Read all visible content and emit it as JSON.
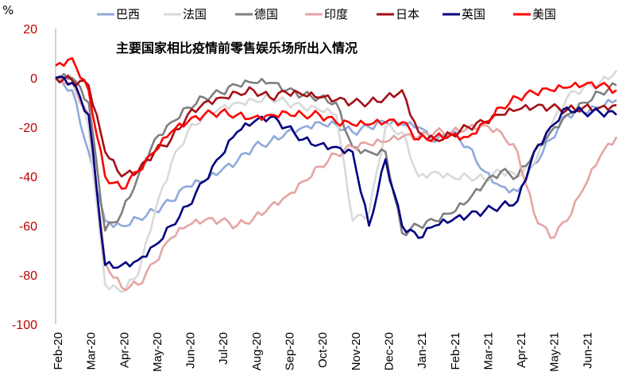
{
  "chart_data": {
    "type": "line",
    "title": "主要国家相比疫情前零售娱乐场所出入情况",
    "ylabel": "%",
    "xlabel": "",
    "ylim": [
      -100,
      20
    ],
    "yticks": [
      "20",
      "0",
      "-20",
      "-40",
      "-60",
      "-80",
      "-100"
    ],
    "ytick_values": [
      20,
      0,
      -20,
      -40,
      -60,
      -80,
      -100
    ],
    "xticks": [
      "Feb-20",
      "Mar-20",
      "Apr-20",
      "May-20",
      "Jun-20",
      "Jul-20",
      "Aug-20",
      "Sep-20",
      "Oct-20",
      "Nov-20",
      "Dec-20",
      "Jan-21",
      "Feb-21",
      "Mar-21",
      "Apr-21",
      "May-21",
      "Jun-21"
    ],
    "x": [
      "Feb-20",
      "Feb-20b",
      "Mar-20",
      "Mar-20b",
      "Apr-20",
      "Apr-20b",
      "May-20",
      "May-20b",
      "Jun-20",
      "Jun-20b",
      "Jul-20",
      "Jul-20b",
      "Aug-20",
      "Aug-20b",
      "Sep-20",
      "Sep-20b",
      "Oct-20",
      "Oct-20b",
      "Nov-20",
      "Nov-20b",
      "Dec-20",
      "Dec-20b",
      "Jan-21",
      "Jan-21b",
      "Feb-21",
      "Feb-21b",
      "Mar-21",
      "Mar-21b",
      "Apr-21",
      "Apr-21b",
      "May-21",
      "May-21b",
      "Jun-21",
      "Jun-21b",
      "Jul-21"
    ],
    "legend_position": "top",
    "grid": false,
    "series": [
      {
        "name": "巴西",
        "color": "#8eaadb",
        "values": [
          0,
          -5,
          -30,
          -58,
          -60,
          -57,
          -54,
          -50,
          -44,
          -42,
          -38,
          -34,
          -28,
          -26,
          -22,
          -20,
          -18,
          -19,
          -22,
          -20,
          -18,
          -19,
          -20,
          -26,
          -22,
          -28,
          -38,
          -44,
          -46,
          -35,
          -25,
          -15,
          -14,
          -12,
          -9
        ]
      },
      {
        "name": "法国",
        "color": "#d9d9d9",
        "values": [
          0,
          0,
          -20,
          -84,
          -87,
          -80,
          -55,
          -35,
          -22,
          -15,
          -12,
          -10,
          -9,
          -8,
          -10,
          -12,
          -13,
          -15,
          -58,
          -55,
          -20,
          -22,
          -40,
          -38,
          -40,
          -40,
          -41,
          -38,
          -40,
          -35,
          -20,
          -8,
          -4,
          -2,
          3
        ]
      },
      {
        "name": "德国",
        "color": "#7f7f7f",
        "values": [
          0,
          0,
          -10,
          -62,
          -55,
          -40,
          -25,
          -18,
          -12,
          -8,
          -6,
          -3,
          -2,
          -2,
          -5,
          -7,
          -8,
          -10,
          -28,
          -30,
          -30,
          -63,
          -60,
          -58,
          -55,
          -50,
          -43,
          -38,
          -40,
          -30,
          -22,
          -15,
          -10,
          -6,
          -3
        ]
      },
      {
        "name": "印度",
        "color": "#e6a4a4",
        "values": [
          0,
          -2,
          -15,
          -75,
          -85,
          -84,
          -75,
          -65,
          -60,
          -58,
          -58,
          -60,
          -57,
          -52,
          -48,
          -42,
          -36,
          -31,
          -28,
          -27,
          -26,
          -24,
          -24,
          -22,
          -22,
          -20,
          -19,
          -22,
          -30,
          -55,
          -65,
          -58,
          -45,
          -32,
          -24
        ]
      },
      {
        "name": "日本",
        "color": "#a50f15",
        "values": [
          0,
          -1,
          -3,
          -30,
          -40,
          -38,
          -30,
          -25,
          -15,
          -10,
          -8,
          -6,
          -5,
          -8,
          -6,
          -7,
          -8,
          -9,
          -10,
          -10,
          -8,
          -5,
          -22,
          -25,
          -23,
          -20,
          -18,
          -15,
          -13,
          -12,
          -12,
          -13,
          -12,
          -12,
          -11
        ]
      },
      {
        "name": "英国",
        "color": "#000080",
        "values": [
          0,
          -2,
          -15,
          -76,
          -76,
          -74,
          -68,
          -60,
          -52,
          -42,
          -32,
          -22,
          -18,
          -16,
          -20,
          -25,
          -27,
          -28,
          -30,
          -60,
          -33,
          -60,
          -65,
          -60,
          -58,
          -56,
          -54,
          -52,
          -50,
          -30,
          -20,
          -12,
          -14,
          -14,
          -15
        ]
      },
      {
        "name": "美国",
        "color": "#ff0000",
        "values": [
          5,
          8,
          -5,
          -40,
          -45,
          -38,
          -30,
          -22,
          -18,
          -15,
          -14,
          -15,
          -16,
          -15,
          -14,
          -15,
          -15,
          -18,
          -19,
          -19,
          -18,
          -18,
          -25,
          -24,
          -23,
          -24,
          -18,
          -12,
          -8,
          -6,
          -5,
          -4,
          -3,
          -3,
          -5
        ]
      }
    ]
  }
}
